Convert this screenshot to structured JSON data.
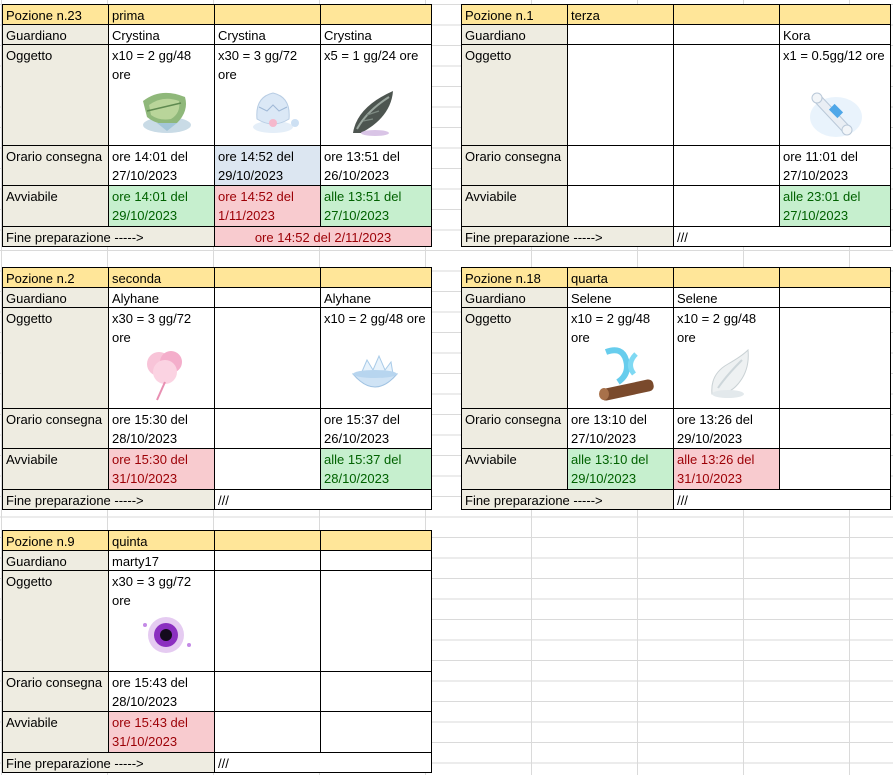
{
  "labels": {
    "guardian": "Guardiano",
    "object": "Oggetto",
    "delivery": "Orario consegna",
    "startable": "Avviabile",
    "end": "Fine preparazione ----->"
  },
  "potions": [
    {
      "title": "Pozione n.23",
      "name": "prima",
      "slots": [
        {
          "guardian": "Crystina",
          "object": "x10 = 2 gg/48 ore",
          "icon": "leaf-bundle-icon",
          "delivery": "ore 14:01 del 27/10/2023",
          "startable": "ore 14:01 del 29/10/2023"
        },
        {
          "guardian": "Crystina",
          "object": "x30 = 3 gg/72 ore",
          "icon": "cracked-egg-icon",
          "delivery": "ore 14:52 del 29/10/2023",
          "startable": "ore 14:52 del 1/11/2023"
        },
        {
          "guardian": "Crystina",
          "object": "x5 = 1 gg/24 ore",
          "icon": "dark-feather-icon",
          "delivery": "ore 13:51 del 26/10/2023",
          "startable": "alle 13:51 del 27/10/2023"
        }
      ],
      "end": "ore 14:52 del 2/11/2023"
    },
    {
      "title": "Pozione n.1",
      "name": "terza",
      "slots": [
        {
          "guardian": "",
          "object": "",
          "delivery": "",
          "startable": ""
        },
        {
          "guardian": "",
          "object": "",
          "delivery": "",
          "startable": ""
        },
        {
          "guardian": "Kora",
          "object": "x1 = 0.5gg/12 ore",
          "icon": "scroll-icon",
          "delivery": "ore 11:01 del 27/10/2023",
          "startable": "alle 23:01 del 27/10/2023"
        }
      ],
      "end": "///"
    },
    {
      "title": "Pozione n.2",
      "name": "seconda",
      "slots": [
        {
          "guardian": "Alyhane",
          "object": "x30 = 3 gg/72 ore",
          "icon": "cotton-candy-icon",
          "delivery": "ore 15:30 del 28/10/2023",
          "startable": "ore 15:30 del 31/10/2023"
        },
        {
          "guardian": "",
          "object": "",
          "delivery": "",
          "startable": ""
        },
        {
          "guardian": "Alyhane",
          "object": "x10 = 2 gg/48 ore",
          "icon": "ice-bowl-icon",
          "delivery": "ore 15:37 del 26/10/2023",
          "startable": "alle 15:37 del 28/10/2023"
        }
      ],
      "end": "///"
    },
    {
      "title": "Pozione n.18",
      "name": "quarta",
      "slots": [
        {
          "guardian": "Selene",
          "object": "x10 = 2 gg/48 ore",
          "icon": "log-water-icon",
          "delivery": "ore 13:10 del 27/10/2023",
          "startable": "alle 13:10 del 29/10/2023"
        },
        {
          "guardian": "Selene",
          "object": "x10 = 2 gg/48 ore",
          "icon": "white-wisp-icon",
          "delivery": "ore 13:26 del 29/10/2023",
          "startable": "alle 13:26 del 31/10/2023"
        },
        {
          "guardian": "",
          "object": "",
          "delivery": "",
          "startable": ""
        }
      ],
      "end": "///"
    },
    {
      "title": "Pozione n.9",
      "name": "quinta",
      "slots": [
        {
          "guardian": "marty17",
          "object": "x30 = 3 gg/72 ore",
          "icon": "dark-orb-icon",
          "delivery": "ore 15:43 del 28/10/2023",
          "startable": "ore 15:43 del 31/10/2023"
        },
        {
          "guardian": "",
          "object": "",
          "delivery": "",
          "startable": ""
        },
        {
          "guardian": "",
          "object": "",
          "delivery": "",
          "startable": ""
        }
      ],
      "end": "///"
    }
  ]
}
